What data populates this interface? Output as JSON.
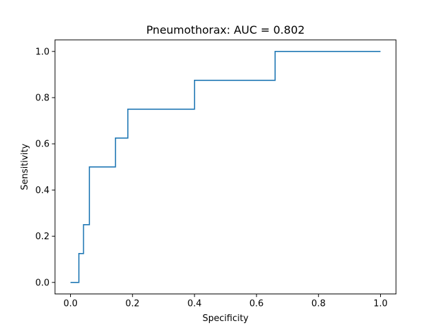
{
  "chart_data": {
    "type": "line",
    "title": "Pneumothorax: AUC = 0.802",
    "xlabel": "Specificity",
    "ylabel": "Sensitivity",
    "xlim": [
      -0.05,
      1.05
    ],
    "ylim": [
      -0.05,
      1.05
    ],
    "grid": false,
    "x_ticks": [
      0.0,
      0.2,
      0.4,
      0.6,
      0.8,
      1.0
    ],
    "y_ticks": [
      0.0,
      0.2,
      0.4,
      0.6,
      0.8,
      1.0
    ],
    "x_tick_labels": [
      "0.0",
      "0.2",
      "0.4",
      "0.6",
      "0.8",
      "1.0"
    ],
    "y_tick_labels": [
      "0.0",
      "0.2",
      "0.4",
      "0.6",
      "0.8",
      "1.0"
    ],
    "series": [
      {
        "color": "#1f77b4",
        "x": [
          0.0,
          0.027,
          0.027,
          0.042,
          0.042,
          0.061,
          0.061,
          0.145,
          0.145,
          0.185,
          0.185,
          0.4,
          0.4,
          0.66,
          0.66,
          1.0
        ],
        "y": [
          0.0,
          0.0,
          0.125,
          0.125,
          0.25,
          0.25,
          0.5,
          0.5,
          0.625,
          0.625,
          0.75,
          0.75,
          0.875,
          0.875,
          1.0,
          1.0
        ]
      }
    ]
  }
}
